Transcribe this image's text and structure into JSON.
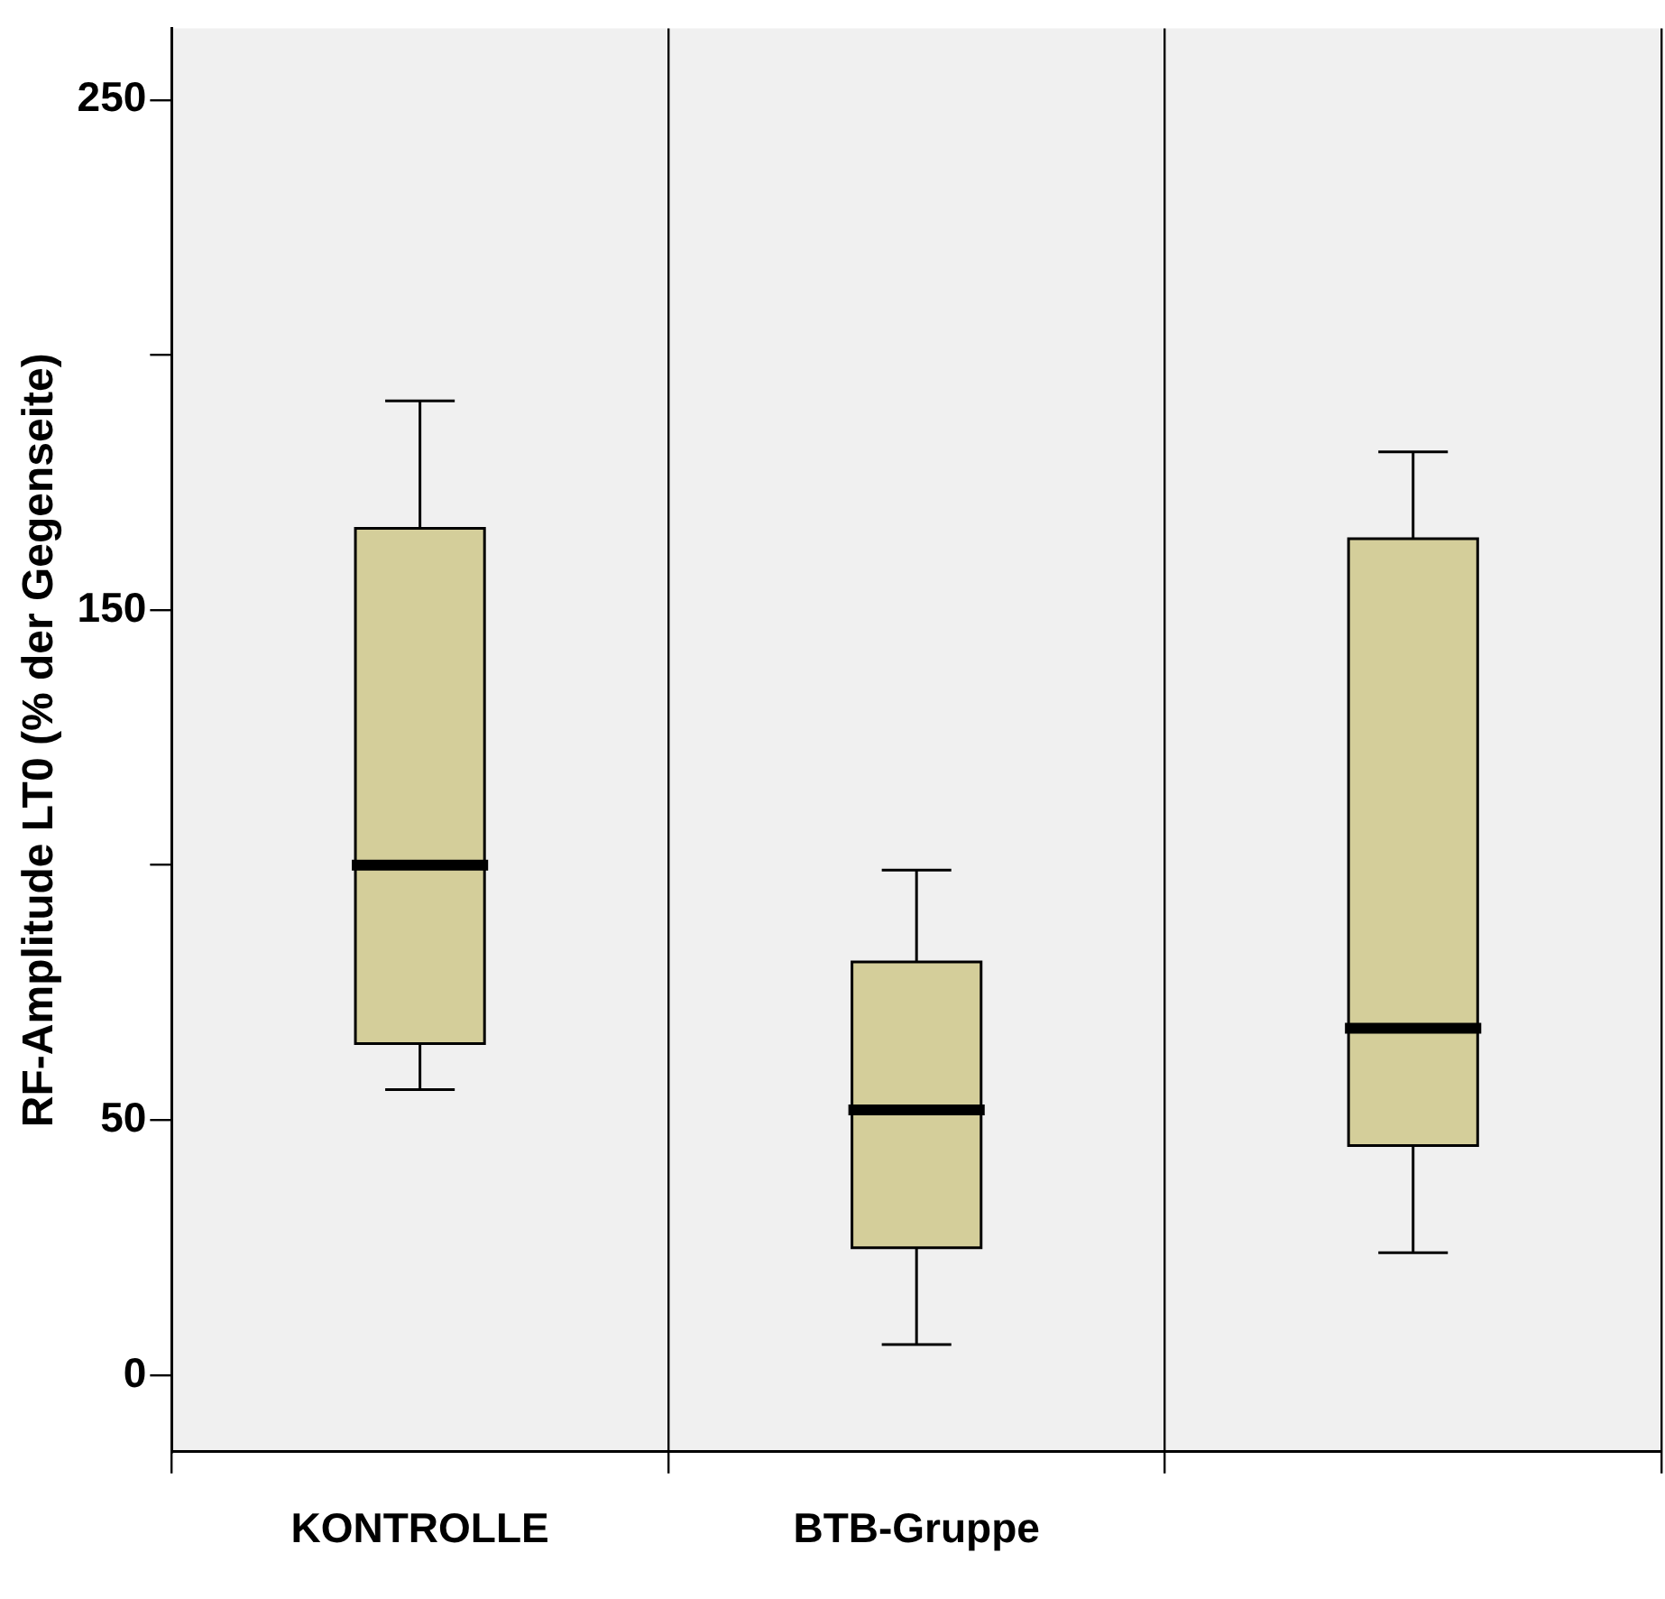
{
  "chart_data": {
    "type": "box",
    "ylabel": "RF-Amplitude LT0 (% der Gegenseite)",
    "categories": [
      "KONTROLLE",
      "BTB-Gruppe",
      null
    ],
    "boxes": [
      {
        "low": 56,
        "q1": 65,
        "median": 100,
        "q3": 166,
        "high": 191
      },
      {
        "low": 6,
        "q1": 25,
        "median": 52,
        "q3": 81,
        "high": 99
      },
      {
        "low": 24,
        "q1": 45,
        "median": 68,
        "q3": 164,
        "high": 181
      }
    ],
    "color": "#d4ce9a",
    "ylim": [
      -15,
      264
    ],
    "yticks": [
      0,
      50,
      {
        "value": 100,
        "label": null
      },
      150,
      {
        "value": 200,
        "label": null
      },
      250
    ],
    "grid": "x",
    "legend": false
  }
}
